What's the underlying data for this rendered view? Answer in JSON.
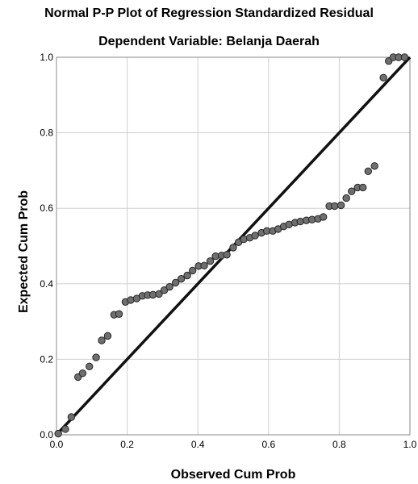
{
  "chart_data": {
    "type": "scatter",
    "title": "Normal P-P Plot of Regression Standardized Residual",
    "subtitle": "Dependent Variable: Belanja Daerah",
    "xlabel": "Observed Cum Prob",
    "ylabel": "Expected Cum Prob",
    "xlim": [
      0,
      1
    ],
    "ylim": [
      0,
      1
    ],
    "x_ticks": [
      "0.0",
      "0.2",
      "0.4",
      "0.6",
      "0.8",
      "1.0"
    ],
    "y_ticks": [
      "0.0",
      "0.2",
      "0.4",
      "0.6",
      "0.8",
      "1.0"
    ],
    "grid": true,
    "reference_line": [
      [
        0,
        0
      ],
      [
        1,
        1
      ]
    ],
    "points": [
      [
        0.005,
        0.003
      ],
      [
        0.025,
        0.015
      ],
      [
        0.042,
        0.047
      ],
      [
        0.061,
        0.153
      ],
      [
        0.074,
        0.163
      ],
      [
        0.093,
        0.181
      ],
      [
        0.112,
        0.205
      ],
      [
        0.128,
        0.25
      ],
      [
        0.145,
        0.262
      ],
      [
        0.163,
        0.318
      ],
      [
        0.177,
        0.32
      ],
      [
        0.195,
        0.352
      ],
      [
        0.21,
        0.357
      ],
      [
        0.227,
        0.361
      ],
      [
        0.243,
        0.368
      ],
      [
        0.258,
        0.37
      ],
      [
        0.273,
        0.371
      ],
      [
        0.29,
        0.373
      ],
      [
        0.305,
        0.383
      ],
      [
        0.32,
        0.392
      ],
      [
        0.337,
        0.403
      ],
      [
        0.353,
        0.413
      ],
      [
        0.37,
        0.422
      ],
      [
        0.385,
        0.435
      ],
      [
        0.402,
        0.447
      ],
      [
        0.418,
        0.448
      ],
      [
        0.435,
        0.46
      ],
      [
        0.45,
        0.473
      ],
      [
        0.467,
        0.475
      ],
      [
        0.482,
        0.477
      ],
      [
        0.5,
        0.496
      ],
      [
        0.515,
        0.51
      ],
      [
        0.53,
        0.518
      ],
      [
        0.547,
        0.522
      ],
      [
        0.562,
        0.528
      ],
      [
        0.58,
        0.535
      ],
      [
        0.595,
        0.54
      ],
      [
        0.612,
        0.54
      ],
      [
        0.627,
        0.545
      ],
      [
        0.643,
        0.552
      ],
      [
        0.658,
        0.557
      ],
      [
        0.675,
        0.562
      ],
      [
        0.69,
        0.565
      ],
      [
        0.707,
        0.568
      ],
      [
        0.723,
        0.57
      ],
      [
        0.74,
        0.572
      ],
      [
        0.755,
        0.577
      ],
      [
        0.772,
        0.606
      ],
      [
        0.787,
        0.606
      ],
      [
        0.805,
        0.608
      ],
      [
        0.82,
        0.627
      ],
      [
        0.835,
        0.645
      ],
      [
        0.852,
        0.655
      ],
      [
        0.867,
        0.655
      ],
      [
        0.882,
        0.698
      ],
      [
        0.9,
        0.712
      ],
      [
        0.925,
        0.946
      ],
      [
        0.94,
        0.99
      ],
      [
        0.953,
        1.0
      ],
      [
        0.968,
        1.0
      ],
      [
        0.985,
        1.0
      ]
    ]
  }
}
